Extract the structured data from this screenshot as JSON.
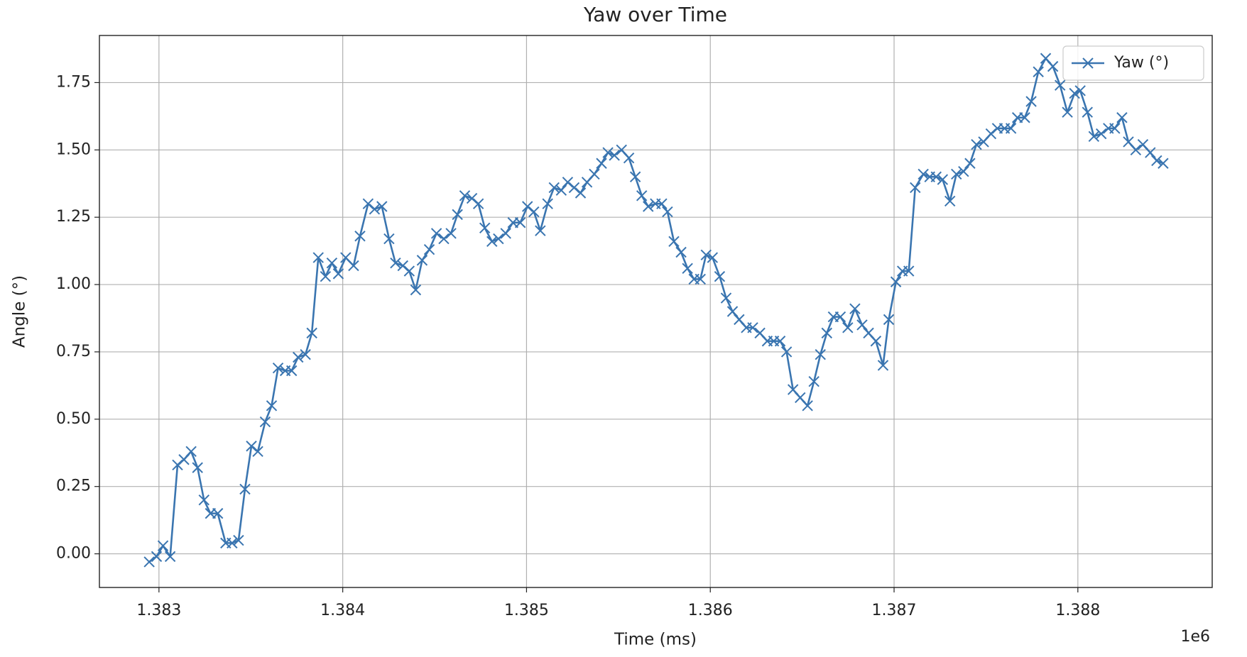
{
  "chart_data": {
    "type": "line",
    "title": "Yaw over Time",
    "xlabel": "Time (ms)",
    "ylabel": "Angle (°)",
    "x_offset_label": "1e6",
    "x": [
      1382947,
      1382987,
      1383022,
      1383061,
      1383101,
      1383136,
      1383175,
      1383210,
      1383245,
      1383280,
      1383320,
      1383363,
      1383398,
      1383433,
      1383468,
      1383503,
      1383538,
      1383578,
      1383613,
      1383648,
      1383687,
      1383722,
      1383757,
      1383797,
      1383832,
      1383867,
      1383906,
      1383941,
      1383976,
      1384016,
      1384059,
      1384094,
      1384138,
      1384173,
      1384213,
      1384252,
      1384287,
      1384327,
      1384362,
      1384397,
      1384432,
      1384471,
      1384510,
      1384550,
      1384589,
      1384624,
      1384664,
      1384703,
      1384738,
      1384773,
      1384812,
      1384847,
      1384887,
      1384926,
      1384966,
      1385005,
      1385040,
      1385075,
      1385115,
      1385150,
      1385189,
      1385224,
      1385259,
      1385294,
      1385329,
      1385369,
      1385408,
      1385443,
      1385478,
      1385517,
      1385557,
      1385592,
      1385627,
      1385662,
      1385701,
      1385736,
      1385767,
      1385802,
      1385841,
      1385876,
      1385911,
      1385946,
      1385977,
      1386012,
      1386051,
      1386086,
      1386121,
      1386157,
      1386196,
      1386231,
      1386270,
      1386310,
      1386345,
      1386380,
      1386415,
      1386450,
      1386489,
      1386529,
      1386564,
      1386599,
      1386634,
      1386669,
      1386708,
      1386748,
      1386787,
      1386826,
      1386861,
      1386901,
      1386940,
      1386971,
      1387010,
      1387045,
      1387080,
      1387115,
      1387159,
      1387194,
      1387229,
      1387264,
      1387304,
      1387339,
      1387378,
      1387413,
      1387448,
      1387487,
      1387527,
      1387562,
      1387601,
      1387636,
      1387671,
      1387711,
      1387746,
      1387785,
      1387825,
      1387864,
      1387903,
      1387943,
      1387982,
      1388013,
      1388052,
      1388087,
      1388127,
      1388166,
      1388201,
      1388240,
      1388275,
      1388315,
      1388354,
      1388394,
      1388429,
      1388464
    ],
    "series": [
      {
        "name": "Yaw (°)",
        "color": "#3a75b0",
        "values": [
          -0.03,
          -0.01,
          0.03,
          -0.01,
          0.33,
          0.35,
          0.38,
          0.32,
          0.2,
          0.15,
          0.15,
          0.04,
          0.04,
          0.05,
          0.24,
          0.4,
          0.38,
          0.49,
          0.55,
          0.69,
          0.68,
          0.68,
          0.73,
          0.74,
          0.82,
          1.1,
          1.03,
          1.08,
          1.04,
          1.1,
          1.07,
          1.18,
          1.3,
          1.28,
          1.29,
          1.17,
          1.08,
          1.07,
          1.05,
          0.98,
          1.09,
          1.13,
          1.19,
          1.17,
          1.19,
          1.26,
          1.33,
          1.32,
          1.3,
          1.21,
          1.16,
          1.17,
          1.19,
          1.23,
          1.23,
          1.29,
          1.27,
          1.2,
          1.3,
          1.36,
          1.35,
          1.38,
          1.36,
          1.34,
          1.38,
          1.41,
          1.45,
          1.49,
          1.48,
          1.5,
          1.47,
          1.4,
          1.33,
          1.29,
          1.3,
          1.3,
          1.27,
          1.16,
          1.12,
          1.06,
          1.02,
          1.02,
          1.11,
          1.1,
          1.03,
          0.95,
          0.9,
          0.87,
          0.84,
          0.84,
          0.82,
          0.79,
          0.79,
          0.79,
          0.75,
          0.61,
          0.58,
          0.55,
          0.64,
          0.74,
          0.82,
          0.88,
          0.88,
          0.84,
          0.91,
          0.85,
          0.82,
          0.79,
          0.7,
          0.87,
          1.01,
          1.05,
          1.05,
          1.36,
          1.41,
          1.4,
          1.4,
          1.39,
          1.31,
          1.41,
          1.42,
          1.45,
          1.52,
          1.53,
          1.56,
          1.58,
          1.58,
          1.58,
          1.62,
          1.62,
          1.68,
          1.79,
          1.84,
          1.81,
          1.74,
          1.64,
          1.71,
          1.72,
          1.64,
          1.55,
          1.56,
          1.58,
          1.58,
          1.62,
          1.53,
          1.5,
          1.52,
          1.49,
          1.46,
          1.45
        ]
      }
    ],
    "xlim": [
      1382676,
      1388731
    ],
    "ylim": [
      -0.125,
      1.925
    ],
    "xticks": [
      {
        "value": 1383000,
        "label": "1.383"
      },
      {
        "value": 1384000,
        "label": "1.384"
      },
      {
        "value": 1385000,
        "label": "1.385"
      },
      {
        "value": 1386000,
        "label": "1.386"
      },
      {
        "value": 1387000,
        "label": "1.387"
      },
      {
        "value": 1388000,
        "label": "1.388"
      }
    ],
    "yticks": [
      {
        "value": 0,
        "label": "0.00"
      },
      {
        "value": 0.25,
        "label": "0.25"
      },
      {
        "value": 0.5,
        "label": "0.50"
      },
      {
        "value": 0.75,
        "label": "0.75"
      },
      {
        "value": 1,
        "label": "1.00"
      },
      {
        "value": 1.25,
        "label": "1.25"
      },
      {
        "value": 1.5,
        "label": "1.50"
      },
      {
        "value": 1.75,
        "label": "1.75"
      }
    ],
    "grid": true,
    "legend": "upper right",
    "marker": "x"
  }
}
